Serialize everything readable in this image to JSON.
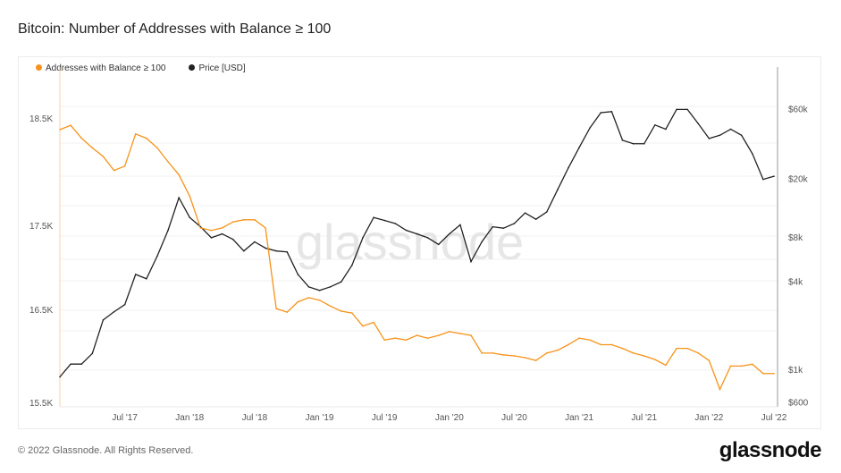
{
  "title": "Bitcoin: Number of Addresses with Balance ≥ 100",
  "footer": "© 2022 Glassnode. All Rights Reserved.",
  "logo": "glassnode",
  "watermark": "glassnode",
  "colors": {
    "addresses": "#f7931a",
    "price": "#222222",
    "grid": "#f0f0f0"
  },
  "chart_data": {
    "type": "line",
    "title": "Bitcoin: Number of Addresses with Balance ≥ 100",
    "x": [
      "Jan '17",
      "Feb '17",
      "Mar '17",
      "Apr '17",
      "May '17",
      "Jun '17",
      "Jul '17",
      "Aug '17",
      "Sep '17",
      "Oct '17",
      "Nov '17",
      "Dec '17",
      "Jan '18",
      "Feb '18",
      "Mar '18",
      "Apr '18",
      "May '18",
      "Jun '18",
      "Jul '18",
      "Aug '18",
      "Sep '18",
      "Oct '18",
      "Nov '18",
      "Dec '18",
      "Jan '19",
      "Feb '19",
      "Mar '19",
      "Apr '19",
      "May '19",
      "Jun '19",
      "Jul '19",
      "Aug '19",
      "Sep '19",
      "Oct '19",
      "Nov '19",
      "Dec '19",
      "Jan '20",
      "Feb '20",
      "Mar '20",
      "Apr '20",
      "May '20",
      "Jun '20",
      "Jul '20",
      "Aug '20",
      "Sep '20",
      "Oct '20",
      "Nov '20",
      "Dec '20",
      "Jan '21",
      "Feb '21",
      "Mar '21",
      "Apr '21",
      "May '21",
      "Jun '21",
      "Jul '21",
      "Aug '21",
      "Sep '21",
      "Oct '21",
      "Nov '21",
      "Dec '21",
      "Jan '22",
      "Feb '22",
      "Mar '22",
      "Apr '22",
      "May '22",
      "Jun '22",
      "Jul '22"
    ],
    "series": [
      {
        "name": "Addresses with Balance ≥ 100",
        "axis": "left",
        "values": [
          18400,
          18440,
          18320,
          18230,
          18150,
          18020,
          18060,
          18360,
          18320,
          18230,
          18100,
          17980,
          17780,
          17480,
          17450,
          17480,
          17540,
          17560,
          17560,
          17480,
          16520,
          16480,
          16600,
          16650,
          16620,
          16550,
          16490,
          16470,
          16330,
          16370,
          16180,
          16200,
          16180,
          16230,
          16200,
          16230,
          16270,
          16250,
          16230,
          16040,
          16040,
          16020,
          16010,
          15990,
          15960,
          16040,
          16070,
          16130,
          16200,
          16180,
          16130,
          16130,
          16090,
          16040,
          16010,
          15970,
          15910,
          16090,
          16090,
          16040,
          15960,
          15650,
          15900,
          15900,
          15920,
          15820,
          15820
        ]
      },
      {
        "name": "Price [USD]",
        "axis": "right",
        "values": [
          900,
          1100,
          1100,
          1300,
          2200,
          2500,
          2800,
          4500,
          4200,
          6000,
          9000,
          15000,
          11000,
          9500,
          8000,
          8500,
          7800,
          6500,
          7500,
          6800,
          6500,
          6400,
          4500,
          3700,
          3500,
          3700,
          4000,
          5200,
          8000,
          11000,
          10500,
          10000,
          9000,
          8500,
          8000,
          7200,
          8500,
          9800,
          5500,
          7500,
          9500,
          9300,
          10000,
          11800,
          10700,
          12000,
          17000,
          24000,
          33000,
          45000,
          57000,
          58000,
          37000,
          35000,
          35000,
          47000,
          44000,
          60000,
          60000,
          48000,
          38000,
          40000,
          44000,
          40000,
          30000,
          20000,
          21000
        ]
      }
    ],
    "x_ticks": [
      "Jul '17",
      "Jan '18",
      "Jul '18",
      "Jan '19",
      "Jul '19",
      "Jan '20",
      "Jul '20",
      "Jan '21",
      "Jul '21",
      "Jan '22",
      "Jul '22"
    ],
    "y_left_ticks": [
      {
        "value": 18500,
        "label": "18.5K"
      },
      {
        "value": 17500,
        "label": "17.5K"
      },
      {
        "value": 16500,
        "label": "16.5K"
      },
      {
        "value": 15500,
        "label": "15.5K"
      }
    ],
    "y_right_ticks": [
      {
        "value": 60000,
        "label": "$60k"
      },
      {
        "value": 20000,
        "label": "$20k"
      },
      {
        "value": 8000,
        "label": "$8k"
      },
      {
        "value": 4000,
        "label": "$4k"
      },
      {
        "value": 1000,
        "label": "$1k"
      },
      {
        "value": 600,
        "label": "$600"
      }
    ],
    "y_right_scale": "log",
    "legend": [
      "Addresses with Balance ≥ 100",
      "Price [USD]"
    ],
    "legend_position": "top-left"
  }
}
